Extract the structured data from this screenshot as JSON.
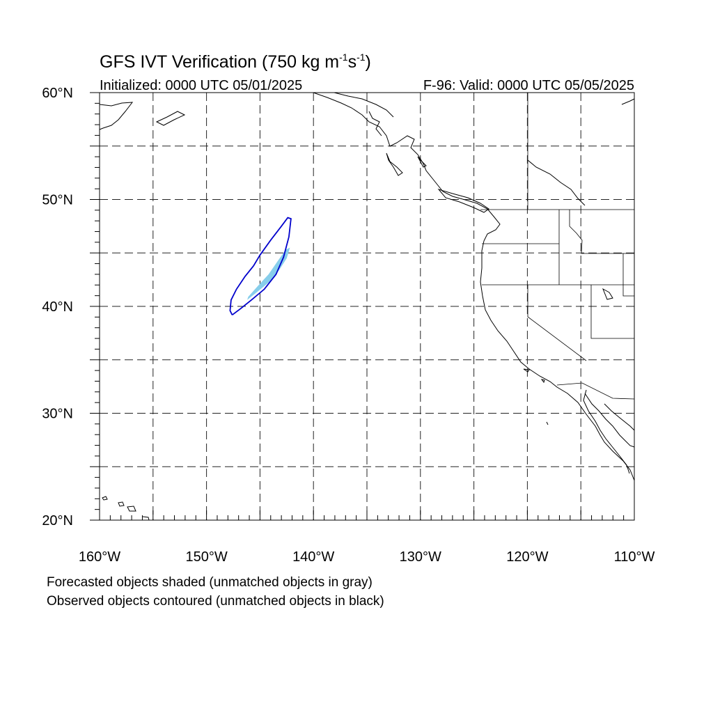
{
  "title": "GFS IVT Verification (750 kg m",
  "title_exp1": "-1",
  "title_mid": "s",
  "title_exp2": "-1",
  "title_end": ")",
  "initialized": "Initialized: 0000 UTC 05/01/2025",
  "valid": "F-96: Valid: 0000 UTC 05/05/2025",
  "map": {
    "lon_min": -160,
    "lon_max": -110,
    "lat_min": 20,
    "lat_max": 60,
    "lat_labels": [
      "20°N",
      "30°N",
      "40°N",
      "50°N",
      "60°N"
    ],
    "lon_labels": [
      "160°W",
      "150°W",
      "140°W",
      "130°W",
      "120°W",
      "110°W"
    ],
    "grid": "dashed every 5 degrees",
    "forecast_object_color": "#87ceeb",
    "observed_contour_color": "#0000cc",
    "forecast_object": [
      [
        -146.2,
        40.6
      ],
      [
        -145.2,
        41.4
      ],
      [
        -144.0,
        42.4
      ],
      [
        -143.2,
        43.4
      ],
      [
        -142.5,
        44.5
      ],
      [
        -142.2,
        45.5
      ],
      [
        -142.6,
        45.3
      ],
      [
        -143.3,
        44.3
      ],
      [
        -144.2,
        43.0
      ],
      [
        -145.2,
        41.9
      ],
      [
        -146.1,
        40.9
      ]
    ],
    "observed_contour": [
      [
        -147.6,
        39.2
      ],
      [
        -146.8,
        39.8
      ],
      [
        -145.8,
        40.6
      ],
      [
        -144.6,
        41.6
      ],
      [
        -143.5,
        43.0
      ],
      [
        -142.8,
        44.6
      ],
      [
        -142.3,
        46.5
      ],
      [
        -142.1,
        48.2
      ],
      [
        -142.4,
        48.3
      ],
      [
        -143.0,
        47.5
      ],
      [
        -144.0,
        46.2
      ],
      [
        -145.0,
        44.8
      ],
      [
        -145.6,
        43.8
      ],
      [
        -146.4,
        42.8
      ],
      [
        -147.2,
        41.6
      ],
      [
        -147.7,
        40.6
      ],
      [
        -147.8,
        39.6
      ]
    ]
  },
  "legend": {
    "line1": "Forecasted objects shaded (unmatched objects in gray)",
    "line2": "Observed objects contoured (unmatched objects in black)"
  }
}
